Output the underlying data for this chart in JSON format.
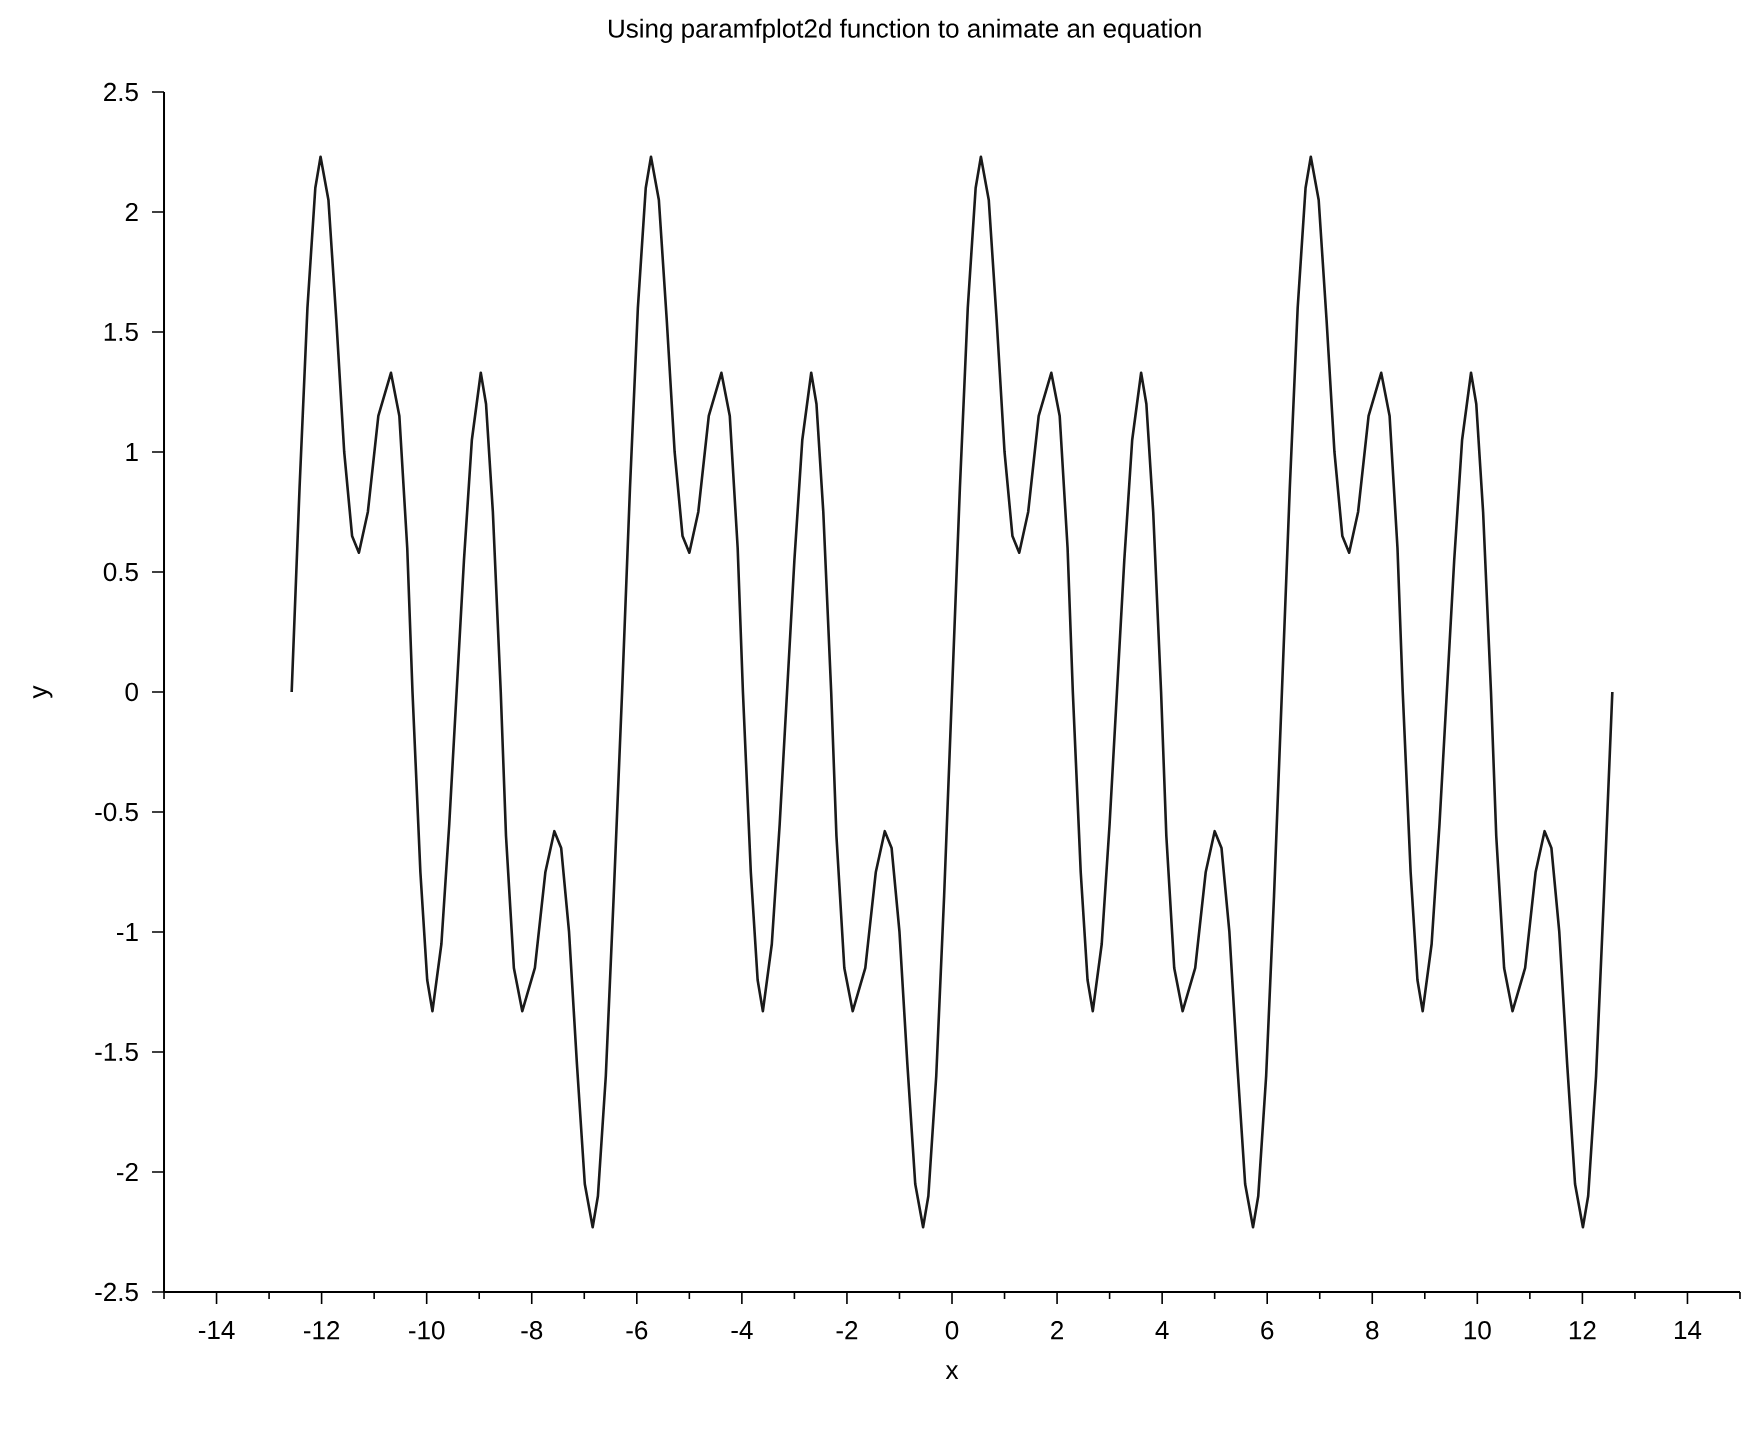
{
  "chart_data": {
    "type": "line",
    "title": "Using paramfplot2d function to animate an equation",
    "xlabel": "x",
    "ylabel": "y",
    "xlim": [
      -15,
      15
    ],
    "xticks": [
      {
        "value": -15,
        "label": null
      },
      -14,
      {
        "value": -13,
        "label": null
      },
      -12,
      {
        "value": -11,
        "label": null
      },
      -10,
      {
        "value": -9,
        "label": null
      },
      -8,
      {
        "value": -7,
        "label": null
      },
      -6,
      {
        "value": -5,
        "label": null
      },
      -4,
      {
        "value": -3,
        "label": null
      },
      -2,
      {
        "value": -1,
        "label": null
      },
      0,
      {
        "value": 1,
        "label": null
      },
      2,
      {
        "value": 3,
        "label": null
      },
      4,
      {
        "value": 5,
        "label": null
      },
      6,
      {
        "value": 7,
        "label": null
      },
      8,
      {
        "value": 9,
        "label": null
      },
      10,
      {
        "value": 11,
        "label": null
      },
      12,
      {
        "value": 13,
        "label": null
      },
      14,
      {
        "value": 15,
        "label": null
      }
    ],
    "ylim": [
      -2.5,
      2.5
    ],
    "yticks": [
      -2.5,
      -2,
      -1.5,
      -1,
      -0.5,
      0,
      0.5,
      1,
      1.5,
      2,
      2.5
    ],
    "marker": "none",
    "line_style": "solid",
    "series": [
      {
        "color": "#1a1a1a",
        "x": [
          -12.57,
          -12.42,
          -12.27,
          -12.12,
          -12.02,
          -11.87,
          -11.72,
          -11.57,
          -11.42,
          -11.29,
          -11.12,
          -10.92,
          -10.68,
          -10.52,
          -10.37,
          -10.27,
          -10.12,
          -9.99,
          -9.89,
          -9.72,
          -9.57,
          -9.43,
          -9.29,
          -9.14,
          -8.97,
          -8.87,
          -8.74,
          -8.59,
          -8.49,
          -8.34,
          -8.18,
          -7.94,
          -7.74,
          -7.57,
          -7.44,
          -7.29,
          -7.14,
          -6.99,
          -6.84,
          -6.74,
          -6.59,
          -6.44,
          -6.28,
          -6.13,
          -5.98,
          -5.83,
          -5.73,
          -5.58,
          -5.43,
          -5.28,
          -5.13,
          -5.0,
          -4.83,
          -4.63,
          -4.39,
          -4.23,
          -4.08,
          -3.98,
          -3.83,
          -3.7,
          -3.6,
          -3.43,
          -3.28,
          -3.14,
          -3.0,
          -2.85,
          -2.68,
          -2.58,
          -2.45,
          -2.3,
          -2.2,
          -2.05,
          -1.89,
          -1.65,
          -1.45,
          -1.28,
          -1.15,
          -1.0,
          -0.85,
          -0.7,
          -0.55,
          -0.45,
          -0.3,
          -0.15,
          0,
          0.15,
          0.3,
          0.45,
          0.55,
          0.7,
          0.85,
          1.0,
          1.15,
          1.28,
          1.45,
          1.65,
          1.89,
          2.05,
          2.2,
          2.3,
          2.45,
          2.58,
          2.68,
          2.85,
          3.0,
          3.14,
          3.28,
          3.43,
          3.6,
          3.7,
          3.83,
          3.98,
          4.08,
          4.23,
          4.39,
          4.63,
          4.83,
          5.0,
          5.13,
          5.28,
          5.43,
          5.58,
          5.73,
          5.83,
          5.98,
          6.13,
          6.28,
          6.43,
          6.58,
          6.73,
          6.83,
          6.98,
          7.13,
          7.28,
          7.43,
          7.56,
          7.73,
          7.93,
          8.17,
          8.33,
          8.48,
          8.58,
          8.73,
          8.86,
          8.96,
          9.13,
          9.28,
          9.42,
          9.56,
          9.71,
          9.88,
          9.98,
          10.11,
          10.26,
          10.36,
          10.51,
          10.67,
          10.91,
          11.11,
          11.28,
          11.41,
          11.56,
          11.71,
          11.86,
          12.01,
          12.11,
          12.26,
          12.41,
          12.57
        ],
        "values": [
          0,
          0.85,
          1.6,
          2.1,
          2.23,
          2.05,
          1.55,
          1.0,
          0.65,
          0.58,
          0.75,
          1.15,
          1.33,
          1.15,
          0.6,
          0,
          -0.75,
          -1.2,
          -1.33,
          -1.05,
          -0.55,
          0,
          0.55,
          1.05,
          1.33,
          1.2,
          0.75,
          0,
          -0.6,
          -1.15,
          -1.33,
          -1.15,
          -0.75,
          -0.58,
          -0.65,
          -1.0,
          -1.55,
          -2.05,
          -2.23,
          -2.1,
          -1.6,
          -0.85,
          0,
          0.85,
          1.6,
          2.1,
          2.23,
          2.05,
          1.55,
          1.0,
          0.65,
          0.58,
          0.75,
          1.15,
          1.33,
          1.15,
          0.6,
          0,
          -0.75,
          -1.2,
          -1.33,
          -1.05,
          -0.55,
          0,
          0.55,
          1.05,
          1.33,
          1.2,
          0.75,
          0,
          -0.6,
          -1.15,
          -1.33,
          -1.15,
          -0.75,
          -0.58,
          -0.65,
          -1.0,
          -1.55,
          -2.05,
          -2.23,
          -2.1,
          -1.6,
          -0.85,
          0,
          0.85,
          1.6,
          2.1,
          2.23,
          2.05,
          1.55,
          1.0,
          0.65,
          0.58,
          0.75,
          1.15,
          1.33,
          1.15,
          0.6,
          0,
          -0.75,
          -1.2,
          -1.33,
          -1.05,
          -0.55,
          0,
          0.55,
          1.05,
          1.33,
          1.2,
          0.75,
          0,
          -0.6,
          -1.15,
          -1.33,
          -1.15,
          -0.75,
          -0.58,
          -0.65,
          -1.0,
          -1.55,
          -2.05,
          -2.23,
          -2.1,
          -1.6,
          -0.85,
          0,
          0.85,
          1.6,
          2.1,
          2.23,
          2.05,
          1.55,
          1.0,
          0.65,
          0.58,
          0.75,
          1.15,
          1.33,
          1.15,
          0.6,
          0,
          -0.75,
          -1.2,
          -1.33,
          -1.05,
          -0.55,
          0,
          0.55,
          1.05,
          1.33,
          1.2,
          0.75,
          0,
          -0.6,
          -1.15,
          -1.33,
          -1.15,
          -0.75,
          -0.58,
          -0.65,
          -1.0,
          -1.55,
          -2.05,
          -2.23,
          -2.1,
          -1.6,
          -0.85,
          0
        ]
      }
    ]
  }
}
